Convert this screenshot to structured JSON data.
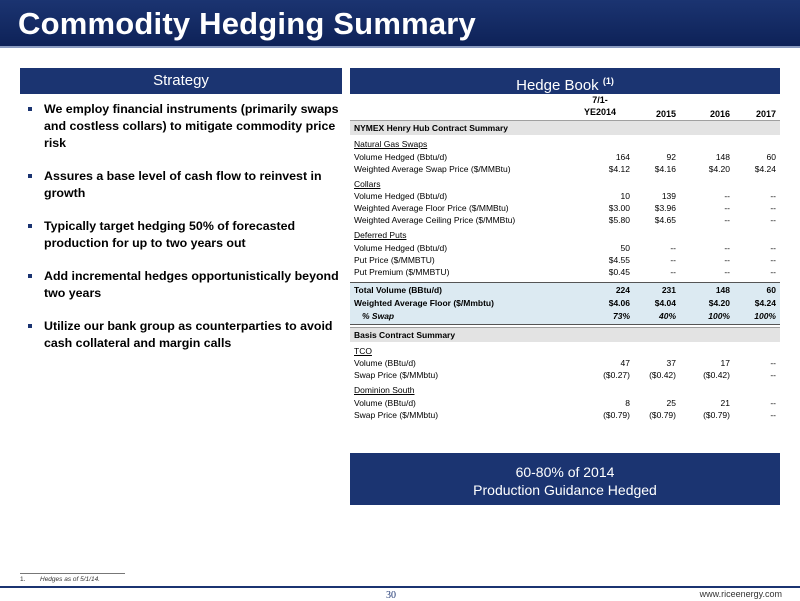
{
  "title": "Commodity Hedging Summary",
  "strategy": {
    "heading": "Strategy",
    "bullets": [
      "We employ financial instruments (primarily swaps and costless collars) to mitigate commodity price risk",
      "Assures a base level of cash flow to reinvest in growth",
      "Typically target hedging 50% of forecasted production for up to two years out",
      "Add incremental hedges opportunistically beyond two years",
      "Utilize our bank group as counterparties to avoid cash collateral and margin calls"
    ]
  },
  "hedge_book": {
    "heading": "Hedge Book",
    "footnote_ref": "(1)",
    "columns": [
      "7/1-YE2014",
      "2015",
      "2016",
      "2017"
    ],
    "columns_display": {
      "c1a": "7/1-",
      "c1b": "YE2014"
    },
    "nymex_section": "NYMEX Henry Hub Contract Summary",
    "swaps": {
      "title": "Natural Gas Swaps",
      "volume_label": "Volume Hedged (Bbtu/d)",
      "volume": [
        "164",
        "92",
        "148",
        "60"
      ],
      "price_label": "Weighted Average Swap Price ($/MMBtu)",
      "price": [
        "$4.12",
        "$4.16",
        "$4.20",
        "$4.24"
      ]
    },
    "collars": {
      "title": "Collars",
      "volume_label": "Volume Hedged (Bbtu/d)",
      "volume": [
        "10",
        "139",
        "--",
        "--"
      ],
      "floor_label": "Weighted Average Floor Price ($/MMBtu)",
      "floor": [
        "$3.00",
        "$3.96",
        "--",
        "--"
      ],
      "ceiling_label": "Weighted Average Ceiling Price ($/MMBtu)",
      "ceiling": [
        "$5.80",
        "$4.65",
        "--",
        "--"
      ]
    },
    "puts": {
      "title": "Deferred Puts",
      "volume_label": "Volume Hedged (Bbtu/d)",
      "volume": [
        "50",
        "--",
        "--",
        "--"
      ],
      "price_label": "Put Price ($/MMBTU)",
      "price": [
        "$4.55",
        "--",
        "--",
        "--"
      ],
      "premium_label": "Put Premium ($/MMBTU)",
      "premium": [
        "$0.45",
        "--",
        "--",
        "--"
      ]
    },
    "totals": {
      "volume_label": "Total Volume (BBtu/d)",
      "volume": [
        "224",
        "231",
        "148",
        "60"
      ],
      "floor_label": "Weighted Average Floor ($/Mmbtu)",
      "floor": [
        "$4.06",
        "$4.04",
        "$4.20",
        "$4.24"
      ],
      "swap_label": "% Swap",
      "swap": [
        "73%",
        "40%",
        "100%",
        "100%"
      ]
    },
    "basis_section": "Basis Contract Summary",
    "tco": {
      "title": "TCO",
      "volume_label": "Volume (BBtu/d)",
      "volume": [
        "47",
        "37",
        "17",
        "--"
      ],
      "price_label": "Swap Price ($/MMbtu)",
      "price": [
        "($0.27)",
        "($0.42)",
        "($0.42)",
        "--"
      ]
    },
    "dominion": {
      "title": "Dominion South",
      "volume_label": "Volume (BBtu/d)",
      "volume": [
        "8",
        "25",
        "21",
        "--"
      ],
      "price_label": "Swap Price ($/MMbtu)",
      "price": [
        "($0.79)",
        "($0.79)",
        "($0.79)",
        "--"
      ]
    }
  },
  "callout": {
    "line1": "60-80% of 2014",
    "line2": "Production Guidance Hedged"
  },
  "footnote": {
    "num": "1.",
    "text": "Hedges as of 5/1/14."
  },
  "page_number": "30",
  "website": "www.riceenergy.com",
  "colors": {
    "navy": "#1b3471",
    "total_band": "#dceaf2",
    "section_band": "#e3e3e3"
  }
}
